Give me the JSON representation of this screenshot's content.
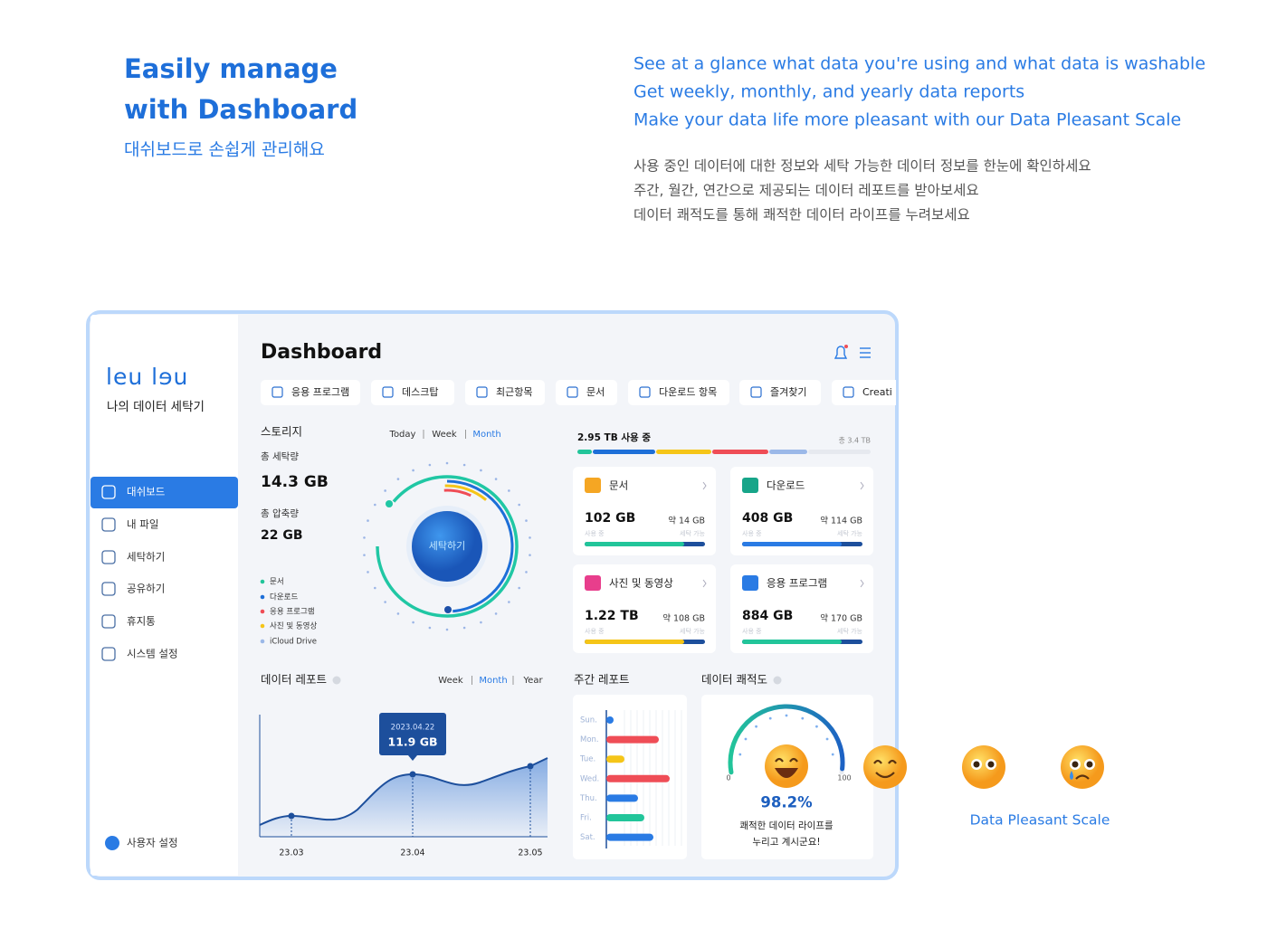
{
  "header": {
    "title_lines": [
      "Easily manage",
      "with Dashboard"
    ],
    "subtitle": "대쉬보드로 손쉽게 관리해요",
    "features_en": [
      "See at a glance what data you're using and what data is washable",
      "Get weekly, monthly, and yearly data reports",
      "Make your data life more pleasant with our Data Pleasant Scale"
    ],
    "features_ko": [
      "사용 중인 데이터에 대한 정보와 세탁 가능한 데이터 정보를 한눈에 확인하세요",
      "주간, 월간, 연간으로 제공되는 데이터 레포트를 받아보세요",
      "데이터 쾌적도를 통해 쾌적한 데이터 라이프를 누려보세요"
    ]
  },
  "app": {
    "logo": "leu lɘu",
    "tagline": "나의 데이터 세탁기",
    "nav": [
      "대쉬보드",
      "내 파일",
      "세탁하기",
      "공유하기",
      "휴지통",
      "시스템 설정"
    ],
    "active_nav": 0,
    "user": "사용자 설정",
    "title": "Dashboard",
    "tabs": [
      "응용 프로그램",
      "데스크탑",
      "최근항목",
      "문서",
      "다운로드 항목",
      "즐겨찾기",
      "Creati"
    ],
    "storage": {
      "label": "스토리지",
      "periods": [
        "Today",
        "Week",
        "Month"
      ],
      "active_period": 2,
      "total_wash_label": "총 세탁량",
      "total_wash": "14.3 GB",
      "compressed_label": "총 압축량",
      "compressed": "22 GB",
      "legend": [
        {
          "name": "문서",
          "color": "#22c59a"
        },
        {
          "name": "다운로드",
          "color": "#1d6fd8"
        },
        {
          "name": "응용 프로그램",
          "color": "#ef4d56"
        },
        {
          "name": "사진 및 동영상",
          "color": "#f5c518"
        },
        {
          "name": "iCloud Drive",
          "color": "#9bb8e8"
        }
      ],
      "button": "세탁하기"
    },
    "usage": {
      "used": "2.95 TB 사용 중",
      "total": "총 3.4 TB"
    },
    "cards_used_label": "사용 중",
    "cards_wash_label": "세탁 가능",
    "cards": [
      {
        "name": "문서",
        "value": "102 GB",
        "approx": "약 14 GB",
        "color": "#f5a623"
      },
      {
        "name": "다운로드",
        "value": "408 GB",
        "approx": "약 114 GB",
        "color": "#17a589"
      },
      {
        "name": "사진 및 동영상",
        "value": "1.22 TB",
        "approx": "약 108 GB",
        "color": "#e83e8c"
      },
      {
        "name": "응용 프로그램",
        "value": "884 GB",
        "approx": "약 170 GB",
        "color": "#2a7be4"
      }
    ],
    "report": {
      "label": "데이터 레포트",
      "periods": [
        "Week",
        "Month",
        "Year"
      ],
      "active_period": 1,
      "tooltip_date": "2023.04.22",
      "tooltip_value": "11.9 GB",
      "x_labels": [
        "23.03",
        "23.04",
        "23.05"
      ]
    },
    "weekly": {
      "label": "주간 레포트",
      "days": [
        "Sun.",
        "Mon.",
        "Tue.",
        "Wed.",
        "Thu.",
        "Fri.",
        "Sat."
      ],
      "values": [
        8,
        58,
        20,
        70,
        35,
        42,
        52
      ],
      "colors": [
        "#2a7be4",
        "#ef4d56",
        "#f5c518",
        "#ef4d56",
        "#2a7be4",
        "#22c59a",
        "#2a7be4"
      ]
    },
    "pleasant": {
      "label": "데이터 쾌적도",
      "min": 0,
      "max": 100,
      "value": 98.2,
      "value_label": "98.2%",
      "message": [
        "쾌적한 데이터 라이프를",
        "누리고 계시군요!"
      ]
    }
  },
  "scale_label": "Data Pleasant Scale"
}
